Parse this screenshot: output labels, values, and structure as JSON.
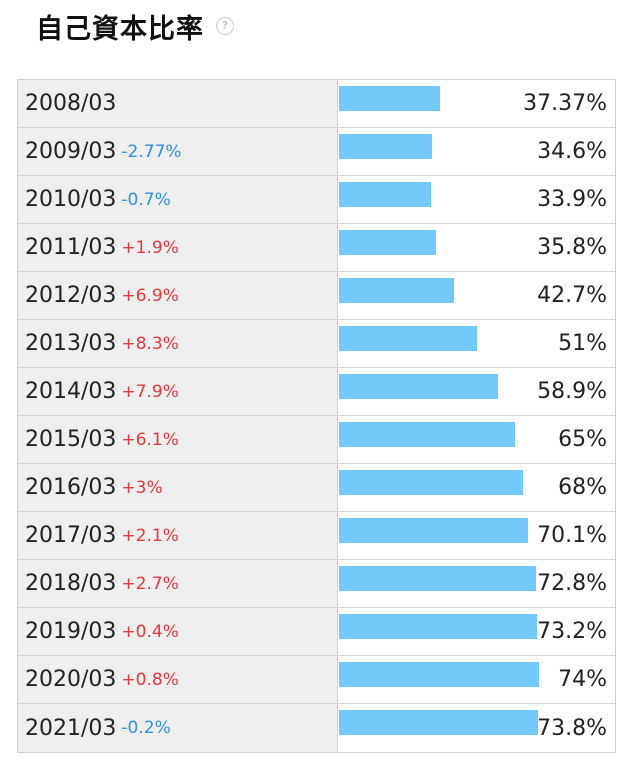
{
  "title": "自己資本比率",
  "help_icon": "question-circle-icon",
  "colors": {
    "bar": "#74c9fb",
    "up": "#e0393e",
    "down": "#2d8fe0"
  },
  "chart_data": {
    "type": "bar",
    "orientation": "horizontal",
    "title": "自己資本比率",
    "xlabel": "",
    "ylabel": "",
    "xlim": [
      0,
      100
    ],
    "categories": [
      "2008/03",
      "2009/03",
      "2010/03",
      "2011/03",
      "2012/03",
      "2013/03",
      "2014/03",
      "2015/03",
      "2016/03",
      "2017/03",
      "2018/03",
      "2019/03",
      "2020/03",
      "2021/03"
    ],
    "values": [
      37.37,
      34.6,
      33.9,
      35.8,
      42.7,
      51,
      58.9,
      65,
      68,
      70.1,
      72.8,
      73.2,
      74,
      73.8
    ],
    "value_labels": [
      "37.37%",
      "34.6%",
      "33.9%",
      "35.8%",
      "42.7%",
      "51%",
      "58.9%",
      "65%",
      "68%",
      "70.1%",
      "72.8%",
      "73.2%",
      "74%",
      "73.8%"
    ],
    "changes": [
      "",
      "-2.77%",
      "-0.7%",
      "+1.9%",
      "+6.9%",
      "+8.3%",
      "+7.9%",
      "+6.1%",
      "+3%",
      "+2.1%",
      "+2.7%",
      "+0.4%",
      "+0.8%",
      "-0.2%"
    ]
  }
}
